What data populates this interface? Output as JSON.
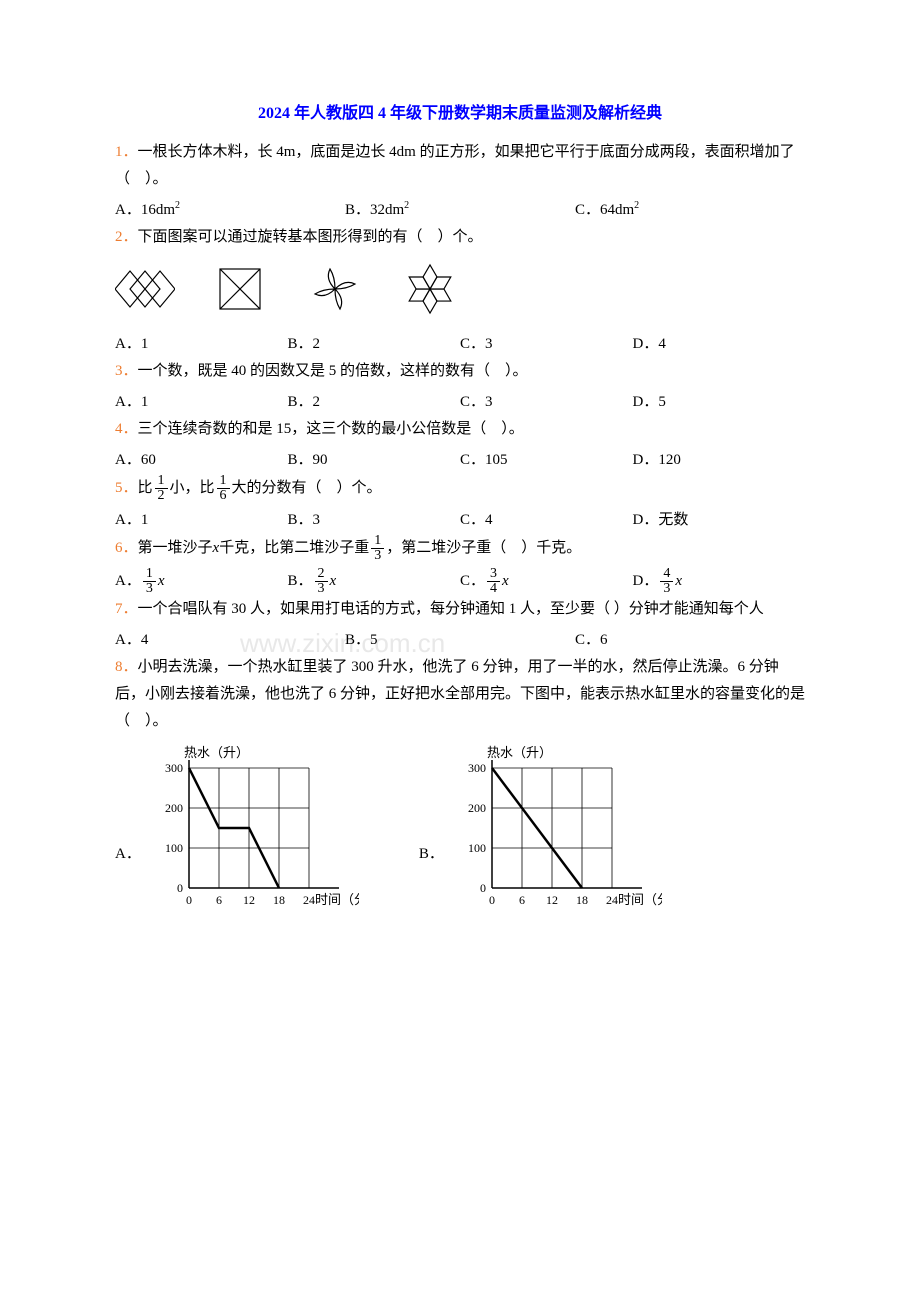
{
  "title": "2024 年人教版四 4 年级下册数学期末质量监测及解析经典",
  "q1": {
    "num": "1．",
    "text": "一根长方体木料，长 4m，底面是边长 4dm 的正方形，如果把它平行于底面分成两段，表面积增加了（　）。",
    "optA": "A．16dm²",
    "optB": "B．32dm²",
    "optC": "C．64dm²"
  },
  "q2": {
    "num": "2．",
    "text": "下面图案可以通过旋转基本图形得到的有（　）个。",
    "optA": "A．1",
    "optB": "B．2",
    "optC": "C．3",
    "optD": "D．4"
  },
  "patterns": {
    "stroke": "#000000",
    "strokeWidth": 1.2,
    "fill": "none"
  },
  "q3": {
    "num": "3．",
    "text": "一个数，既是 40 的因数又是 5 的倍数，这样的数有（　）。",
    "optA": "A．1",
    "optB": "B．2",
    "optC": "C．3",
    "optD": "D．5"
  },
  "q4": {
    "num": "4．",
    "text": "三个连续奇数的和是 15，这三个数的最小公倍数是（　）。",
    "optA": "A．60",
    "optB": "B．90",
    "optC": "C．105",
    "optD": "D．120"
  },
  "q5": {
    "num": "5．",
    "textBefore": "比",
    "frac1num": "1",
    "frac1den": "2",
    "textMid": "小，比",
    "frac2num": "1",
    "frac2den": "6",
    "textAfter": "大的分数有（　）个。",
    "optA": "A．1",
    "optB": "B．3",
    "optC": "C．4",
    "optD": "D．无数"
  },
  "q6": {
    "num": "6．",
    "textBefore": "第一堆沙子",
    "var1": "x",
    "textMid1": "千克，比第二堆沙子重",
    "frac1num": "1",
    "frac1den": "3",
    "textAfter": "，第二堆沙子重（　）千克。",
    "optA": "A．",
    "optAnum": "1",
    "optAden": "3",
    "optB": "B．",
    "optBnum": "2",
    "optBden": "3",
    "optC": "C．",
    "optCnum": "3",
    "optCden": "4",
    "optD": "D．",
    "optDnum": "4",
    "optDden": "3",
    "xvar": "x"
  },
  "q7": {
    "num": "7．",
    "text": "一个合唱队有 30 人，如果用打电话的方式，每分钟通知 1 人，至少要（ ）分钟才能通知每个人",
    "optA": "A．4",
    "optB": "B．5",
    "optC": "C．6"
  },
  "q8": {
    "num": "8．",
    "text": "小明去洗澡，一个热水缸里装了 300 升水，他洗了 6 分钟，用了一半的水，然后停止洗澡。6 分钟后，小刚去接着洗澡，他也洗了 6 分钟，正好把水全部用完。下图中，能表示热水缸里水的容量变化的是（　）。",
    "optA": "A．",
    "optB": "B．"
  },
  "chart": {
    "ylabel": "热水（升）",
    "xlabel": "时间（分）",
    "yticks": [
      "0",
      "100",
      "200",
      "300"
    ],
    "xticks": [
      "0",
      "6",
      "12",
      "18",
      "24"
    ],
    "width": 180,
    "height": 175,
    "gridColor": "#000000",
    "lineColor": "#000000",
    "lineWidth": 2.5,
    "chartA": {
      "points": [
        [
          0,
          300
        ],
        [
          6,
          150
        ],
        [
          12,
          150
        ],
        [
          18,
          0
        ]
      ]
    },
    "chartB": {
      "points": [
        [
          0,
          300
        ],
        [
          18,
          0
        ]
      ]
    }
  },
  "watermark": "www.zixin.com.cn"
}
